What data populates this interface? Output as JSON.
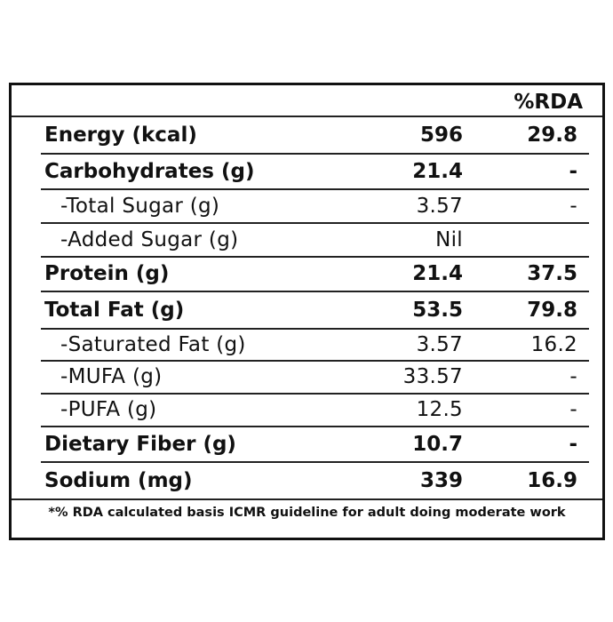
{
  "table": {
    "header": {
      "rda": "%RDA"
    },
    "rows": [
      {
        "label": "Energy (kcal)",
        "value": "596",
        "rda": "29.8"
      },
      {
        "label": "Carbohydrates (g)",
        "value": "21.4",
        "rda": "-"
      },
      {
        "label": "-Total Sugar (g)",
        "value": "3.57",
        "rda": "-"
      },
      {
        "label": "-Added Sugar (g)",
        "value": "Nil"
      },
      {
        "label": "Protein (g)",
        "value": "21.4",
        "rda": "37.5"
      },
      {
        "label": "Total Fat (g)",
        "value": "53.5",
        "rda": "79.8"
      },
      {
        "label": "-Saturated Fat (g)",
        "value": "3.57",
        "rda": "16.2"
      },
      {
        "label": "-MUFA (g)",
        "value": "33.57",
        "rda": "-"
      },
      {
        "label": "-PUFA (g)",
        "value": "12.5",
        "rda": "-"
      },
      {
        "label": "Dietary Fiber (g)",
        "value": "10.7",
        "rda": "-"
      },
      {
        "label": "Sodium (mg)",
        "value": "339",
        "rda": "16.9"
      }
    ],
    "footnote": "*% RDA calculated basis ICMR guideline for adult doing moderate work"
  }
}
